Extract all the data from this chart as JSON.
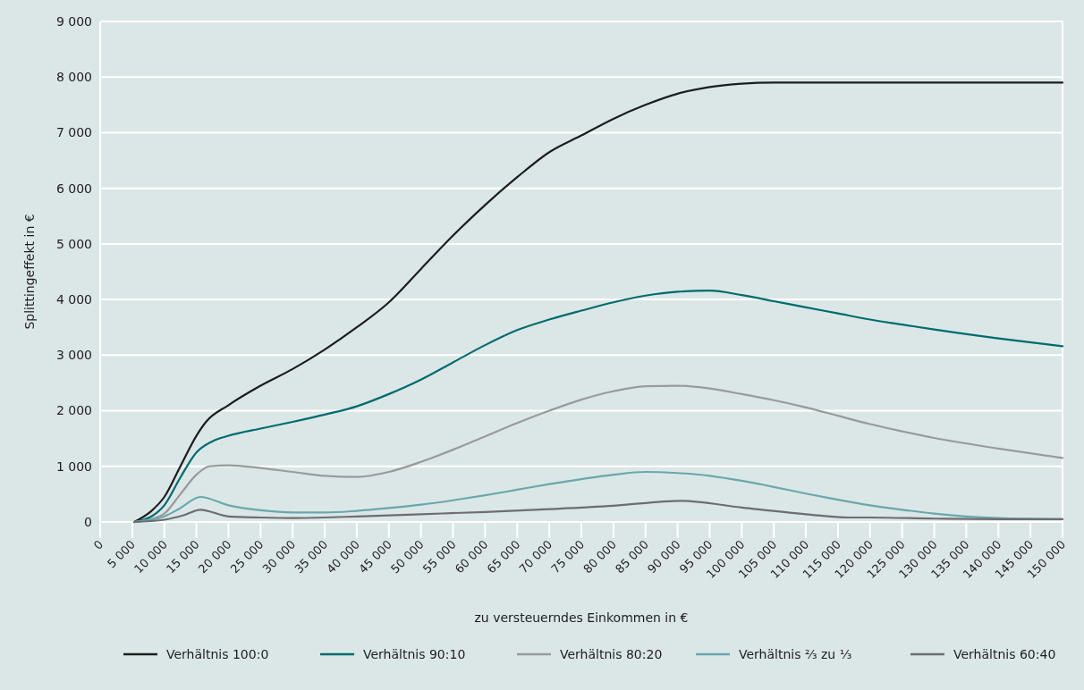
{
  "chart_data": {
    "type": "line",
    "xlabel": "zu versteuerndes Einkommen in €",
    "ylabel": "Splittingeffekt in €",
    "xlim": [
      0,
      150000
    ],
    "ylim": [
      0,
      9000
    ],
    "xticks": [
      {
        "value": 0,
        "label": "0"
      },
      {
        "value": 5000,
        "label": "5 000"
      },
      {
        "value": 10000,
        "label": "10 000"
      },
      {
        "value": 15000,
        "label": "15 000"
      },
      {
        "value": 20000,
        "label": "20 000"
      },
      {
        "value": 25000,
        "label": "25 000"
      },
      {
        "value": 30000,
        "label": "30 000"
      },
      {
        "value": 35000,
        "label": "35 000"
      },
      {
        "value": 40000,
        "label": "40 000"
      },
      {
        "value": 45000,
        "label": "45 000"
      },
      {
        "value": 50000,
        "label": "50 000"
      },
      {
        "value": 55000,
        "label": "55 000"
      },
      {
        "value": 60000,
        "label": "60 000"
      },
      {
        "value": 65000,
        "label": "65 000"
      },
      {
        "value": 70000,
        "label": "70 000"
      },
      {
        "value": 75000,
        "label": "75 000"
      },
      {
        "value": 80000,
        "label": "80 000"
      },
      {
        "value": 85000,
        "label": "85 000"
      },
      {
        "value": 90000,
        "label": "90 000"
      },
      {
        "value": 95000,
        "label": "95 000"
      },
      {
        "value": 100000,
        "label": "100 000"
      },
      {
        "value": 105000,
        "label": "105 000"
      },
      {
        "value": 110000,
        "label": "110 000"
      },
      {
        "value": 115000,
        "label": "115 000"
      },
      {
        "value": 120000,
        "label": "120 000"
      },
      {
        "value": 125000,
        "label": "125 000"
      },
      {
        "value": 130000,
        "label": "130 000"
      },
      {
        "value": 135000,
        "label": "135 000"
      },
      {
        "value": 140000,
        "label": "140 000"
      },
      {
        "value": 145000,
        "label": "145 000"
      },
      {
        "value": 150000,
        "label": "150 000"
      }
    ],
    "yticks": [
      {
        "value": 0,
        "label": "0"
      },
      {
        "value": 1000,
        "label": "1 000"
      },
      {
        "value": 2000,
        "label": "2 000"
      },
      {
        "value": 3000,
        "label": "3 000"
      },
      {
        "value": 4000,
        "label": "4 000"
      },
      {
        "value": 5000,
        "label": "5 000"
      },
      {
        "value": 6000,
        "label": "6 000"
      },
      {
        "value": 7000,
        "label": "7 000"
      },
      {
        "value": 8000,
        "label": "8 000"
      },
      {
        "value": 9000,
        "label": "9 000"
      }
    ],
    "grid": "y",
    "legend": "bottom",
    "marker": "none",
    "line_style": "solid",
    "series": [
      {
        "name": "Verhältnis 100:0",
        "color": "#1d1d1f",
        "x": [
          5300,
          8000,
          10000,
          12500,
          15000,
          16500,
          20000,
          25000,
          30000,
          35000,
          40000,
          45000,
          50000,
          55000,
          60000,
          65000,
          70000,
          75000,
          80000,
          85000,
          90000,
          95000,
          100000,
          105000,
          150000
        ],
        "values": [
          0,
          200,
          450,
          1000,
          1550,
          1800,
          2100,
          2450,
          2750,
          3100,
          3500,
          3950,
          4550,
          5150,
          5700,
          6200,
          6650,
          6950,
          7250,
          7500,
          7700,
          7820,
          7880,
          7900,
          7900
        ]
      },
      {
        "name": "Verhältnis 90:10",
        "color": "#006b6e",
        "x": [
          5300,
          8000,
          10000,
          12500,
          15000,
          17500,
          20000,
          25000,
          30000,
          35000,
          40000,
          45000,
          50000,
          55000,
          60000,
          65000,
          70000,
          75000,
          80000,
          85000,
          90000,
          95000,
          100000,
          105000,
          110000,
          115000,
          120000,
          125000,
          130000,
          140000,
          150000
        ],
        "values": [
          0,
          100,
          300,
          800,
          1250,
          1450,
          1550,
          1680,
          1800,
          1930,
          2080,
          2300,
          2560,
          2870,
          3180,
          3450,
          3640,
          3800,
          3950,
          4070,
          4140,
          4160,
          4080,
          3970,
          3860,
          3750,
          3640,
          3550,
          3460,
          3300,
          3160
        ]
      },
      {
        "name": "Verhältnis 80:20",
        "color": "#9a9a9c",
        "x": [
          5300,
          8000,
          10000,
          12500,
          15000,
          17000,
          20000,
          25000,
          30000,
          35000,
          40000,
          45000,
          50000,
          55000,
          60000,
          65000,
          70000,
          75000,
          80000,
          85000,
          90000,
          95000,
          100000,
          105000,
          110000,
          115000,
          120000,
          125000,
          130000,
          140000,
          150000
        ],
        "values": [
          0,
          50,
          150,
          500,
          850,
          1000,
          1020,
          970,
          900,
          830,
          810,
          900,
          1080,
          1300,
          1540,
          1780,
          2000,
          2200,
          2350,
          2440,
          2450,
          2400,
          2300,
          2190,
          2060,
          1910,
          1760,
          1630,
          1510,
          1320,
          1150
        ]
      },
      {
        "name": "Verhältnis ⅔ zu ⅓",
        "color": "#6aa7ad",
        "x": [
          5300,
          10000,
          12500,
          15600,
          20000,
          25000,
          30000,
          35000,
          40000,
          45000,
          50000,
          55000,
          60000,
          65000,
          70000,
          75000,
          80000,
          85000,
          90000,
          95000,
          100000,
          105000,
          110000,
          115000,
          120000,
          125000,
          130000,
          135000,
          140000,
          150000
        ],
        "values": [
          0,
          100,
          250,
          450,
          300,
          210,
          170,
          170,
          200,
          250,
          310,
          390,
          480,
          580,
          680,
          770,
          850,
          900,
          880,
          830,
          740,
          630,
          510,
          400,
          300,
          220,
          150,
          100,
          70,
          50
        ]
      },
      {
        "name": "Verhältnis 60:40",
        "color": "#6d6d70",
        "x": [
          5300,
          10000,
          13000,
          15600,
          20000,
          25000,
          30000,
          35000,
          40000,
          50000,
          60000,
          70000,
          80000,
          90500,
          100000,
          110000,
          116700,
          120000,
          130000,
          140000,
          150000
        ],
        "values": [
          0,
          40,
          120,
          220,
          100,
          80,
          70,
          80,
          100,
          140,
          180,
          230,
          290,
          380,
          260,
          140,
          80,
          80,
          60,
          50,
          50
        ]
      }
    ]
  }
}
